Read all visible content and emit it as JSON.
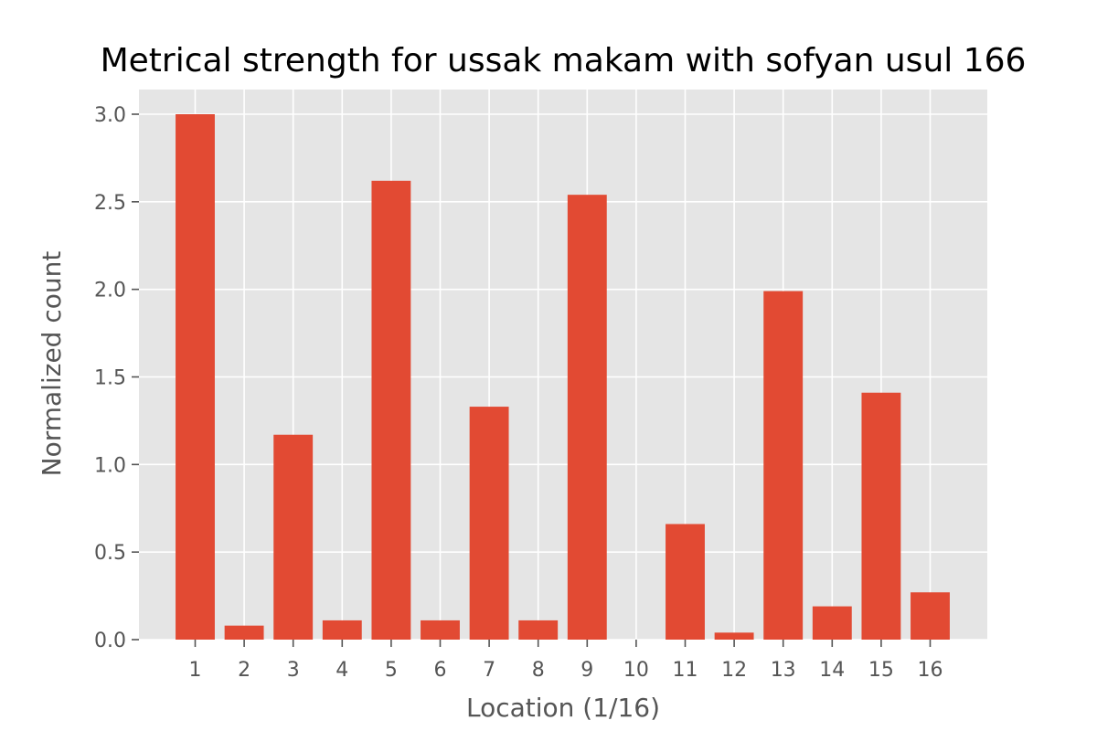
{
  "chart_data": {
    "type": "bar",
    "title": "Metrical strength for ussak makam with sofyan usul 166",
    "xlabel": "Location (1/16)",
    "ylabel": "Normalized count",
    "categories": [
      "1",
      "2",
      "3",
      "4",
      "5",
      "6",
      "7",
      "8",
      "9",
      "10",
      "11",
      "12",
      "13",
      "14",
      "15",
      "16"
    ],
    "values": [
      3.0,
      0.08,
      1.17,
      0.11,
      2.62,
      0.11,
      1.33,
      0.11,
      2.54,
      0.0,
      0.66,
      0.04,
      1.99,
      0.19,
      1.41,
      0.27
    ],
    "ylim": [
      0,
      3.0
    ],
    "yticks": [
      "0.0",
      "0.5",
      "1.0",
      "1.5",
      "2.0",
      "2.5",
      "3.0"
    ],
    "grid": true,
    "colors": {
      "bar": "#E24A33",
      "plot_background": "#E5E5E5",
      "grid": "#FFFFFF"
    }
  }
}
